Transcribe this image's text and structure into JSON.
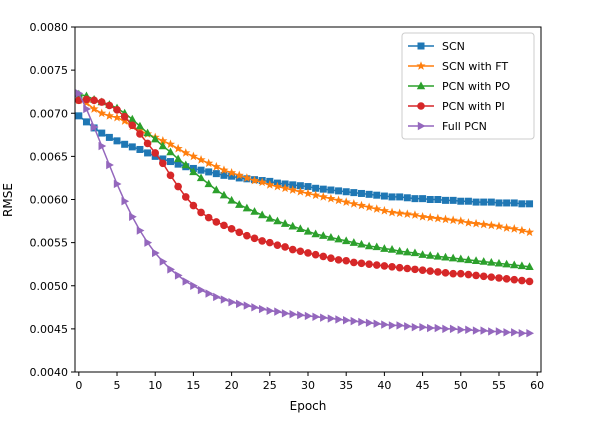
{
  "chart_data": {
    "type": "line",
    "title": "",
    "xlabel": "Epoch",
    "ylabel": "RMSE",
    "xlim": [
      -0.5,
      60.5
    ],
    "ylim": [
      0.004,
      0.008
    ],
    "xticks": [
      0,
      5,
      10,
      15,
      20,
      25,
      30,
      35,
      40,
      45,
      50,
      55,
      60
    ],
    "xtick_labels": [
      "0",
      "5",
      "10",
      "15",
      "20",
      "25",
      "30",
      "35",
      "40",
      "45",
      "50",
      "55",
      "60"
    ],
    "yticks": [
      0.004,
      0.0045,
      0.005,
      0.0055,
      0.006,
      0.0065,
      0.007,
      0.0075,
      0.008
    ],
    "ytick_labels": [
      "0.0040",
      "0.0045",
      "0.0050",
      "0.0055",
      "0.0060",
      "0.0065",
      "0.0070",
      "0.0075",
      "0.0080"
    ],
    "grid": false,
    "legend_position": "top-right",
    "x": [
      0,
      1,
      2,
      3,
      4,
      5,
      6,
      7,
      8,
      9,
      10,
      11,
      12,
      13,
      14,
      15,
      16,
      17,
      18,
      19,
      20,
      21,
      22,
      23,
      24,
      25,
      26,
      27,
      28,
      29,
      30,
      31,
      32,
      33,
      34,
      35,
      36,
      37,
      38,
      39,
      40,
      41,
      42,
      43,
      44,
      45,
      46,
      47,
      48,
      49,
      50,
      51,
      52,
      53,
      54,
      55,
      56,
      57,
      58,
      59
    ],
    "series": [
      {
        "name": "SCN",
        "color": "#1f77b4",
        "marker": "square",
        "values": [
          0.00697,
          0.0069,
          0.00683,
          0.00677,
          0.00672,
          0.00668,
          0.00664,
          0.00661,
          0.00658,
          0.00654,
          0.0065,
          0.00647,
          0.00644,
          0.00641,
          0.00638,
          0.00636,
          0.00634,
          0.00632,
          0.0063,
          0.00628,
          0.00627,
          0.00625,
          0.00624,
          0.00623,
          0.00622,
          0.00621,
          0.00619,
          0.00618,
          0.00617,
          0.00616,
          0.00615,
          0.00613,
          0.00612,
          0.00611,
          0.0061,
          0.00609,
          0.00608,
          0.00607,
          0.00606,
          0.00605,
          0.00604,
          0.00603,
          0.00603,
          0.00602,
          0.00601,
          0.00601,
          0.006,
          0.006,
          0.00599,
          0.00599,
          0.00598,
          0.00598,
          0.00597,
          0.00597,
          0.00597,
          0.00596,
          0.00596,
          0.00596,
          0.00595,
          0.00595
        ]
      },
      {
        "name": "SCN with FT",
        "color": "#ff7f0e",
        "marker": "star",
        "values": [
          0.00715,
          0.00712,
          0.00705,
          0.007,
          0.00697,
          0.00695,
          0.00691,
          0.00685,
          0.0068,
          0.00676,
          0.00672,
          0.00668,
          0.00664,
          0.00659,
          0.00654,
          0.0065,
          0.00646,
          0.00642,
          0.00638,
          0.00634,
          0.00631,
          0.00628,
          0.00625,
          0.00622,
          0.0062,
          0.00617,
          0.00615,
          0.00613,
          0.00611,
          0.00609,
          0.00607,
          0.00605,
          0.00603,
          0.00601,
          0.00599,
          0.00597,
          0.00595,
          0.00593,
          0.00591,
          0.00589,
          0.00587,
          0.00585,
          0.00584,
          0.00583,
          0.00582,
          0.0058,
          0.00579,
          0.00578,
          0.00577,
          0.00576,
          0.00575,
          0.00573,
          0.00572,
          0.00571,
          0.0057,
          0.00569,
          0.00567,
          0.00566,
          0.00564,
          0.00562
        ]
      },
      {
        "name": "PCN with PO",
        "color": "#2ca02c",
        "marker": "triangle-up",
        "values": [
          0.00722,
          0.0072,
          0.00716,
          0.00713,
          0.0071,
          0.00706,
          0.007,
          0.00693,
          0.00685,
          0.00677,
          0.0067,
          0.00662,
          0.00655,
          0.00647,
          0.0064,
          0.00632,
          0.00625,
          0.00618,
          0.00611,
          0.00605,
          0.00599,
          0.00594,
          0.0059,
          0.00586,
          0.00582,
          0.00578,
          0.00575,
          0.00572,
          0.00569,
          0.00566,
          0.00563,
          0.0056,
          0.00558,
          0.00556,
          0.00554,
          0.00552,
          0.0055,
          0.00548,
          0.00546,
          0.00545,
          0.00543,
          0.00542,
          0.0054,
          0.00539,
          0.00538,
          0.00536,
          0.00535,
          0.00534,
          0.00533,
          0.00532,
          0.00531,
          0.0053,
          0.00529,
          0.00528,
          0.00527,
          0.00526,
          0.00525,
          0.00524,
          0.00523,
          0.00522
        ]
      },
      {
        "name": "PCN with PI",
        "color": "#d62728",
        "marker": "circle",
        "values": [
          0.00715,
          0.00716,
          0.00715,
          0.00713,
          0.00709,
          0.00704,
          0.00696,
          0.00686,
          0.00676,
          0.00665,
          0.00654,
          0.00642,
          0.00628,
          0.00615,
          0.00603,
          0.00593,
          0.00585,
          0.00579,
          0.00574,
          0.0057,
          0.00566,
          0.00562,
          0.00558,
          0.00555,
          0.00552,
          0.0055,
          0.00547,
          0.00545,
          0.00542,
          0.0054,
          0.00538,
          0.00536,
          0.00534,
          0.00532,
          0.0053,
          0.00529,
          0.00527,
          0.00526,
          0.00525,
          0.00524,
          0.00523,
          0.00522,
          0.00521,
          0.0052,
          0.00519,
          0.00518,
          0.00517,
          0.00516,
          0.00515,
          0.00514,
          0.00514,
          0.00513,
          0.00512,
          0.00511,
          0.0051,
          0.00509,
          0.00508,
          0.00507,
          0.00506,
          0.00505
        ]
      },
      {
        "name": "Full PCN",
        "color": "#9467bd",
        "marker": "triangle-right",
        "values": [
          0.00723,
          0.00705,
          0.00684,
          0.00662,
          0.0064,
          0.00618,
          0.00598,
          0.0058,
          0.00564,
          0.0055,
          0.00538,
          0.00528,
          0.00519,
          0.00512,
          0.00505,
          0.005,
          0.00495,
          0.00491,
          0.00487,
          0.00484,
          0.00481,
          0.00479,
          0.00477,
          0.00475,
          0.00473,
          0.00471,
          0.0047,
          0.00468,
          0.00467,
          0.00466,
          0.00465,
          0.00464,
          0.00463,
          0.00462,
          0.00461,
          0.0046,
          0.00459,
          0.00458,
          0.00457,
          0.00456,
          0.00455,
          0.00454,
          0.00454,
          0.00453,
          0.00452,
          0.00452,
          0.00451,
          0.00451,
          0.0045,
          0.0045,
          0.00449,
          0.00449,
          0.00448,
          0.00448,
          0.00447,
          0.00447,
          0.00446,
          0.00446,
          0.00445,
          0.00445
        ]
      }
    ]
  }
}
